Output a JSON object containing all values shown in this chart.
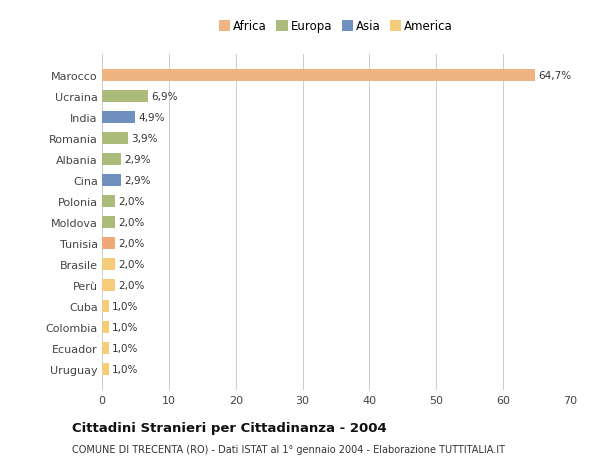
{
  "categories": [
    "Marocco",
    "Ucraina",
    "India",
    "Romania",
    "Albania",
    "Cina",
    "Polonia",
    "Moldova",
    "Tunisia",
    "Brasile",
    "Perù",
    "Cuba",
    "Colombia",
    "Ecuador",
    "Uruguay"
  ],
  "values": [
    64.7,
    6.9,
    4.9,
    3.9,
    2.9,
    2.9,
    2.0,
    2.0,
    2.0,
    2.0,
    2.0,
    1.0,
    1.0,
    1.0,
    1.0
  ],
  "labels": [
    "64,7%",
    "6,9%",
    "4,9%",
    "3,9%",
    "2,9%",
    "2,9%",
    "2,0%",
    "2,0%",
    "2,0%",
    "2,0%",
    "2,0%",
    "1,0%",
    "1,0%",
    "1,0%",
    "1,0%"
  ],
  "continents": [
    "Africa",
    "Europa",
    "Asia",
    "Europa",
    "Europa",
    "Asia",
    "Europa",
    "Europa",
    "Africa",
    "America",
    "America",
    "America",
    "America",
    "America",
    "America"
  ],
  "legend_labels": [
    "Africa",
    "Europa",
    "Asia",
    "America"
  ],
  "legend_colors": [
    "#F0B482",
    "#AABB7A",
    "#7090C0",
    "#F5CC7A"
  ],
  "africa_color": "#F0B482",
  "europa_color": "#AABB7A",
  "asia_color": "#7090C0",
  "america_color": "#F5CC7A",
  "tunisia_color": "#F0A878",
  "title": "Cittadini Stranieri per Cittadinanza - 2004",
  "subtitle": "COMUNE DI TRECENTA (RO) - Dati ISTAT al 1° gennaio 2004 - Elaborazione TUTTITALIA.IT",
  "xlim": [
    0,
    70
  ],
  "xticks": [
    0,
    10,
    20,
    30,
    40,
    50,
    60,
    70
  ],
  "background_color": "#FFFFFF",
  "bar_height": 0.55,
  "grid_color": "#CCCCCC"
}
